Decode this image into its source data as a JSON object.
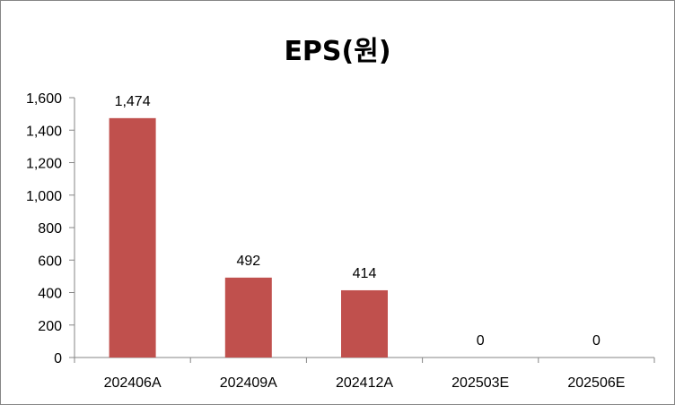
{
  "chart_data": {
    "type": "bar",
    "title": "EPS(원)",
    "categories": [
      "202406A",
      "202409A",
      "202412A",
      "202503E",
      "202506E"
    ],
    "values": [
      1474,
      492,
      414,
      0,
      0
    ],
    "data_labels": [
      "1,474",
      "492",
      "414",
      "0",
      "0"
    ],
    "ylim": [
      0,
      1600
    ],
    "y_ticks": [
      0,
      200,
      400,
      600,
      800,
      1000,
      1200,
      1400,
      1600
    ],
    "y_tick_labels": [
      "0",
      "200",
      "400",
      "600",
      "800",
      "1,000",
      "1,200",
      "1,400",
      "1,600"
    ],
    "bar_color": "#C0504D",
    "grid": false,
    "legend": "none"
  }
}
